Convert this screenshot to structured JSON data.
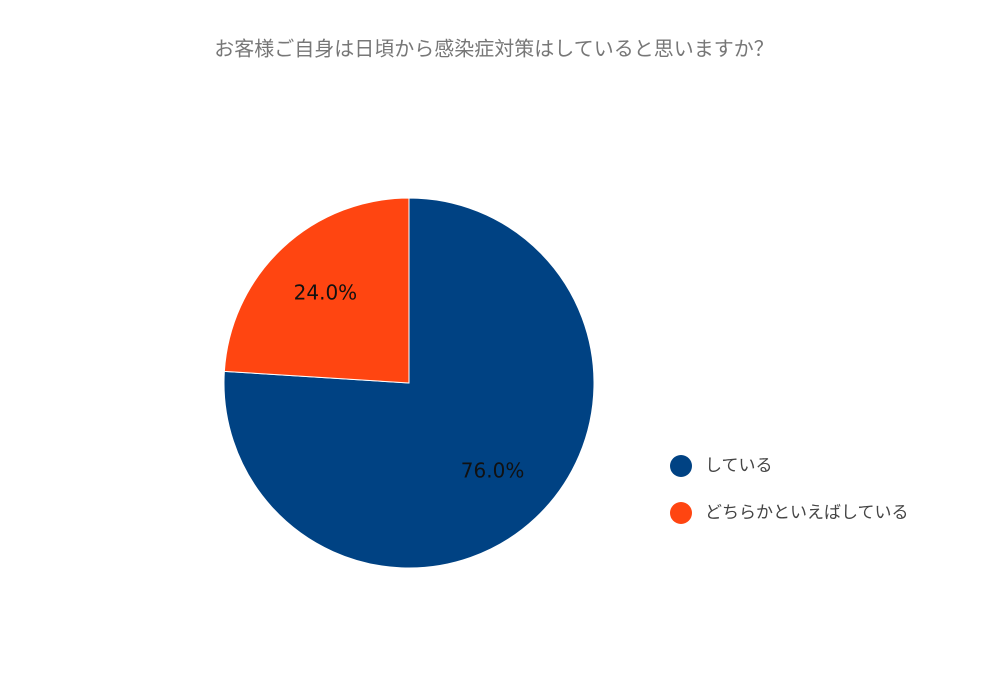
{
  "chart_data": {
    "type": "pie",
    "title": "お客様ご自身は日頃から感染症対策はしていると思いますか？",
    "categories": [
      "している",
      "どちらかといえばしている"
    ],
    "values": [
      76.0,
      24.0
    ],
    "value_labels": [
      "76.0%",
      "24.0%"
    ],
    "colors": [
      "#004283",
      "#ff4511"
    ],
    "legend": "right"
  }
}
